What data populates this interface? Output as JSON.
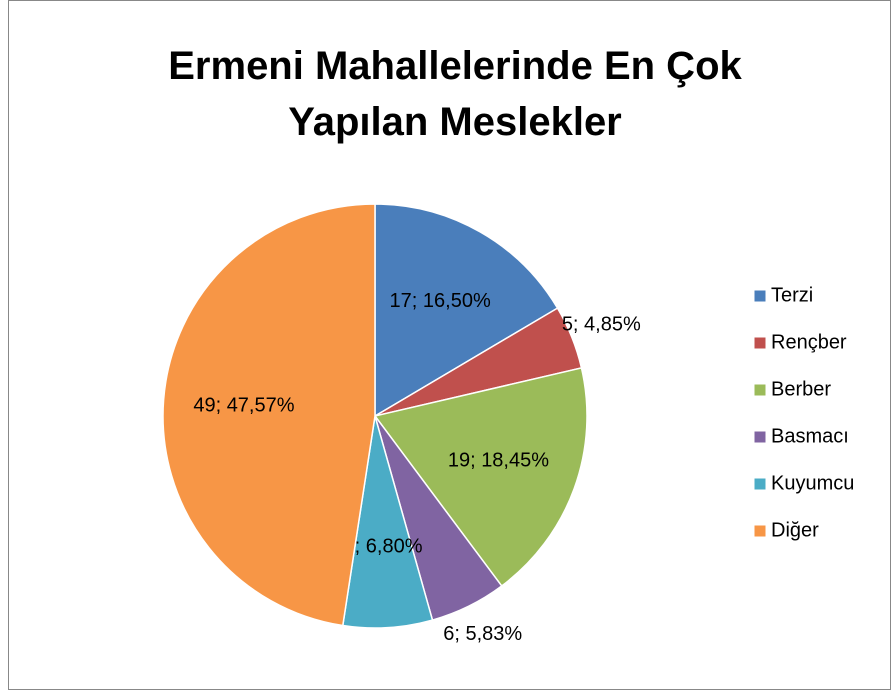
{
  "chart_data": {
    "type": "pie",
    "title": "Ermeni Mahallelerinde En Çok Yapılan Meslekler",
    "categories": [
      "Terzi",
      "Rençber",
      "Berber",
      "Basmacı",
      "Kuyumcu",
      "Diğer"
    ],
    "values": [
      17,
      5,
      19,
      6,
      7,
      49
    ],
    "value_labels": [
      "17; 16,50%",
      "5; 4,85%",
      "19; 18,45%",
      "6; 5,83%",
      "7; 6,80%",
      "49; 47,57%"
    ],
    "colors": [
      "#4a7ebb",
      "#c0504d",
      "#9bbb59",
      "#8064a2",
      "#4bacc6",
      "#f79646"
    ],
    "legend": "right"
  }
}
